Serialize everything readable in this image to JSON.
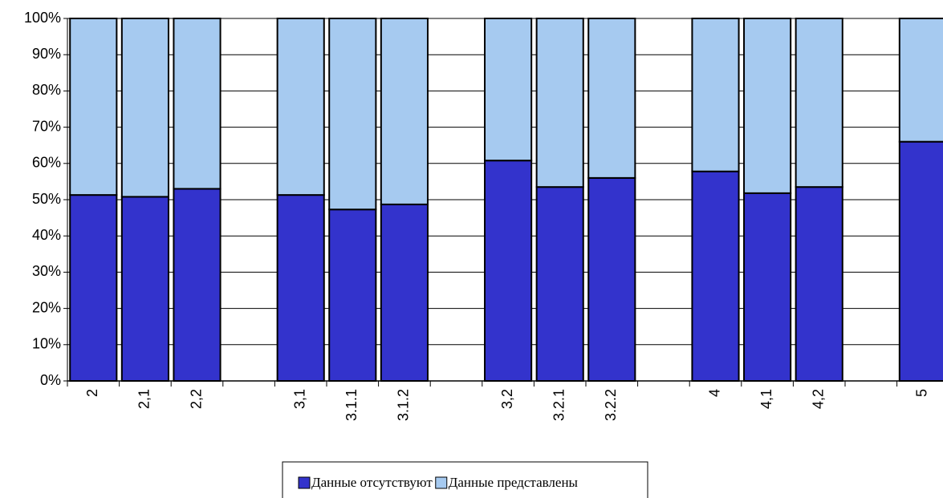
{
  "chart_data": {
    "type": "stacked_bar",
    "categories": [
      "2",
      "2,1",
      "2,2",
      null,
      "3,1",
      "3.1.1",
      "3.1.2",
      null,
      "3,2",
      "3.2.1",
      "3.2.2",
      null,
      "4",
      "4,1",
      "4,2",
      null,
      "5"
    ],
    "series": [
      {
        "name": "Данные отсутствуют",
        "color": "#3333cc",
        "values": [
          51.3,
          50.8,
          53,
          null,
          51.3,
          47.3,
          48.7,
          null,
          60.8,
          53.5,
          56,
          null,
          57.8,
          51.8,
          53.5,
          null,
          66
        ]
      },
      {
        "name": "Данные представлены",
        "color": "#a6caf0",
        "values": [
          48.7,
          49.2,
          47,
          null,
          48.7,
          52.7,
          51.3,
          null,
          39.2,
          46.5,
          44,
          null,
          42.2,
          48.2,
          46.5,
          null,
          34
        ]
      }
    ],
    "ylim": [
      0,
      100
    ],
    "yticks": [
      {
        "value": 0,
        "label": "0%"
      },
      {
        "value": 10,
        "label": "10%"
      },
      {
        "value": 20,
        "label": "20%"
      },
      {
        "value": 30,
        "label": "30%"
      },
      {
        "value": 40,
        "label": "40%"
      },
      {
        "value": 50,
        "label": "50%"
      },
      {
        "value": 60,
        "label": "60%"
      },
      {
        "value": 70,
        "label": "70%"
      },
      {
        "value": 80,
        "label": "80%"
      },
      {
        "value": 90,
        "label": "90%"
      },
      {
        "value": 100,
        "label": "100%"
      }
    ],
    "grid": true
  }
}
